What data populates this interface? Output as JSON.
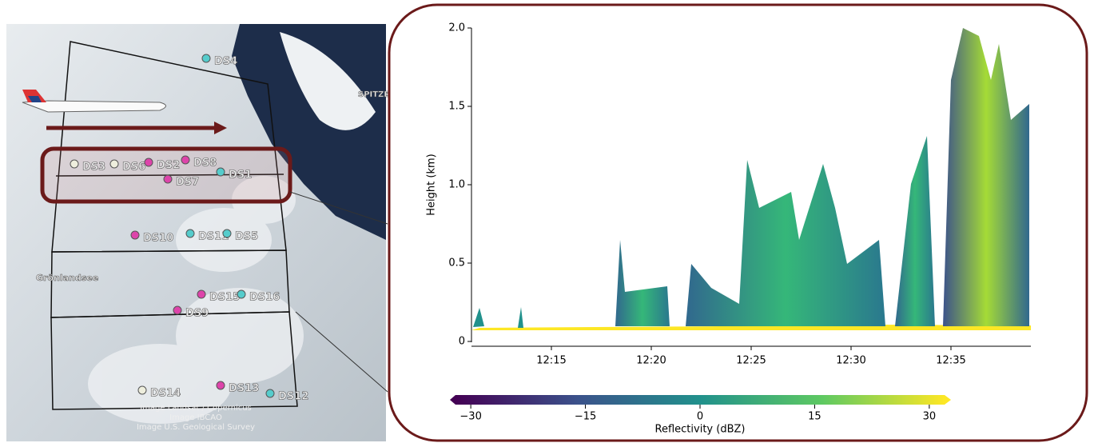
{
  "map": {
    "station_labels": [
      "DS4",
      "DS3",
      "DS6",
      "DS2",
      "DS8",
      "DS7",
      "DS1",
      "DS10",
      "DS11",
      "DS5",
      "DS15",
      "DS16",
      "DS9",
      "DS14",
      "DS13",
      "DS12"
    ],
    "place_label": "Grönlandsee",
    "corner_label": "SPITZE",
    "credits": [
      "Image Landsat / Copernicus",
      "Image IBCAO",
      "Image U.S. Geological Survey"
    ]
  },
  "chart_data": {
    "type": "curtain",
    "ylabel": "Height (km)",
    "ylim": [
      0,
      2
    ],
    "yticks": [
      0,
      0.5,
      {
        "value": 1,
        "label": "1.0"
      },
      1.5,
      {
        "value": 2,
        "label": "2.0"
      }
    ],
    "xlim": [
      "12:11",
      "12:39"
    ],
    "xticks": [
      "12:15",
      "12:20",
      "12:25",
      "12:30",
      "12:35"
    ],
    "colorbar": {
      "label": "Reflectivity (dBZ)",
      "lim": [
        -32,
        32
      ],
      "ticks": [
        {
          "value": -30,
          "label": "−30"
        },
        {
          "value": -15,
          "label": "−15"
        },
        0,
        15,
        30
      ]
    }
  }
}
